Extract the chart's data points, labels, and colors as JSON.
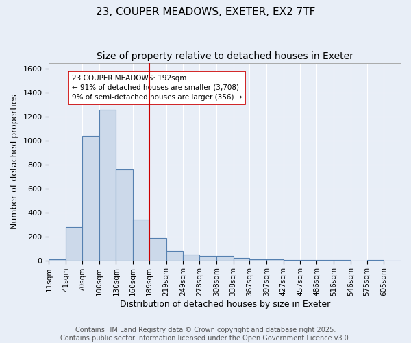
{
  "title": "23, COUPER MEADOWS, EXETER, EX2 7TF",
  "subtitle": "Size of property relative to detached houses in Exeter",
  "xlabel": "Distribution of detached houses by size in Exeter",
  "ylabel": "Number of detached properties",
  "bar_left_edges": [
    11,
    41,
    70,
    100,
    130,
    160,
    189,
    219,
    249,
    278,
    308,
    338,
    367,
    397,
    427,
    457,
    486,
    516,
    546,
    575,
    605
  ],
  "bar_heights": [
    10,
    280,
    1040,
    1260,
    760,
    340,
    185,
    80,
    50,
    38,
    35,
    22,
    10,
    10,
    2,
    5,
    2,
    2,
    0,
    2,
    0
  ],
  "tick_labels": [
    "11sqm",
    "41sqm",
    "70sqm",
    "100sqm",
    "130sqm",
    "160sqm",
    "189sqm",
    "219sqm",
    "249sqm",
    "278sqm",
    "308sqm",
    "338sqm",
    "367sqm",
    "397sqm",
    "427sqm",
    "457sqm",
    "486sqm",
    "516sqm",
    "546sqm",
    "575sqm",
    "605sqm"
  ],
  "bar_color": "#ccd9ea",
  "bar_edge_color": "#5580b0",
  "vline_x": 189,
  "vline_color": "#cc0000",
  "annotation_text": "23 COUPER MEADOWS: 192sqm\n← 91% of detached houses are smaller (3,708)\n9% of semi-detached houses are larger (356) →",
  "annotation_box_color": "#ffffff",
  "annotation_border_color": "#cc0000",
  "ylim": [
    0,
    1650
  ],
  "background_color": "#e8eef7",
  "grid_color": "#ffffff",
  "footnote": "Contains HM Land Registry data © Crown copyright and database right 2025.\nContains public sector information licensed under the Open Government Licence v3.0.",
  "title_fontsize": 11,
  "subtitle_fontsize": 10,
  "axis_label_fontsize": 9,
  "tick_fontsize": 7.5,
  "annotation_fontsize": 7.5,
  "footnote_fontsize": 7
}
